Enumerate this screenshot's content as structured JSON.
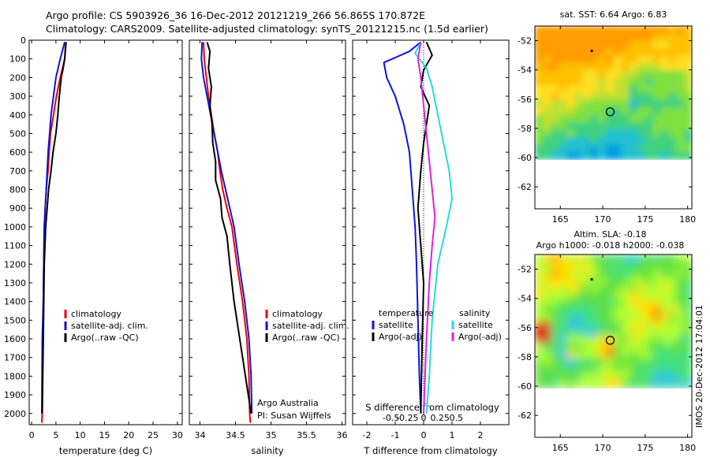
{
  "header": {
    "title_line1": "Argo profile: CS 5903926_36 16-Dec-2012 20121219_266 56.865S 170.872E",
    "title_line2": "Climatology: CARS2009. Satellite-adjusted climatology: synTS_20121215.nc (1.5d earlier)"
  },
  "side_stamp": "IMOS 20-Dec-2012 17:04:01",
  "colors": {
    "climatology": "#ee0000",
    "satellite": "#1111dd",
    "argo": "#000000",
    "sal_satellite": "#22dddd",
    "sal_argo": "#dd22dd"
  },
  "chart_data": [
    {
      "type": "line",
      "id": "temperature",
      "xlabel": "temperature (deg C)",
      "ylabel": "",
      "xlim": [
        -0.5,
        31
      ],
      "ylim": [
        2060,
        0
      ],
      "xticks": [
        0,
        5,
        10,
        15,
        20,
        25,
        30
      ],
      "yticks": [
        0,
        100,
        200,
        300,
        400,
        500,
        600,
        700,
        800,
        900,
        1000,
        1100,
        1200,
        1300,
        1400,
        1500,
        1600,
        1700,
        1800,
        1900,
        2000
      ],
      "legend": {
        "position": "lower-center",
        "entries": [
          "climatology",
          "satellite-adj. clim.",
          "Argo(..raw -QC)"
        ]
      },
      "series": [
        {
          "name": "climatology",
          "color": "#ee0000",
          "x": [
            7.0,
            6.8,
            5.9,
            5.1,
            4.5,
            3.9,
            3.6,
            3.4,
            3.0,
            2.8,
            2.6,
            2.5,
            2.4,
            2.3,
            2.2,
            2.2,
            2.1
          ],
          "y": [
            10,
            100,
            200,
            300,
            400,
            500,
            600,
            700,
            800,
            900,
            1000,
            1200,
            1400,
            1600,
            1800,
            2000,
            2050
          ]
        },
        {
          "name": "satellite-adj. clim.",
          "color": "#1111dd",
          "x": [
            6.8,
            5.9,
            5.0,
            4.5,
            4.0,
            3.7,
            3.4,
            3.2,
            3.0,
            2.8,
            2.6,
            2.5,
            2.4,
            2.2,
            2.15,
            2.1
          ],
          "y": [
            10,
            100,
            200,
            300,
            400,
            500,
            600,
            700,
            800,
            900,
            1000,
            1200,
            1400,
            1600,
            1800,
            2000
          ]
        },
        {
          "name": "Argo(..raw -QC)",
          "color": "#000000",
          "x": [
            7.1,
            6.8,
            6.5,
            6.1,
            5.7,
            5.4,
            5.0,
            4.4,
            4.0,
            3.5,
            3.2,
            2.9,
            2.6,
            2.5,
            2.4,
            2.3,
            2.2
          ],
          "y": [
            10,
            100,
            150,
            200,
            300,
            400,
            500,
            600,
            700,
            800,
            900,
            1000,
            1200,
            1400,
            1600,
            1800,
            2000
          ]
        }
      ]
    },
    {
      "type": "line",
      "id": "salinity",
      "xlabel": "salinity",
      "ylabel": "",
      "xlim": [
        33.85,
        36.05
      ],
      "ylim": [
        2060,
        0
      ],
      "xticks": [
        34,
        34.5,
        35,
        35.5,
        36
      ],
      "xtick_labels": [
        "34",
        "34.5",
        "35",
        "35.5",
        "36"
      ],
      "legend": {
        "position": "lower-center",
        "entries": [
          "climatology",
          "satellite-adj. clim.",
          "Argo(..raw -QC)"
        ]
      },
      "annotation": [
        "Argo Australia",
        "PI: Susan Wijffels"
      ],
      "series": [
        {
          "name": "climatology",
          "color": "#ee0000",
          "x": [
            34.05,
            34.06,
            34.09,
            34.12,
            34.16,
            34.2,
            34.25,
            34.28,
            34.32,
            34.38,
            34.45,
            34.52,
            34.6,
            34.66,
            34.69,
            34.7,
            34.71
          ],
          "y": [
            10,
            100,
            200,
            300,
            400,
            500,
            600,
            700,
            800,
            900,
            1000,
            1200,
            1400,
            1600,
            1800,
            2000,
            2050
          ]
        },
        {
          "name": "satellite-adj. clim.",
          "color": "#1111dd",
          "x": [
            34.03,
            34.02,
            34.05,
            34.1,
            34.15,
            34.2,
            34.25,
            34.3,
            34.36,
            34.42,
            34.48,
            34.55,
            34.63,
            34.69,
            34.72,
            34.73
          ],
          "y": [
            10,
            100,
            200,
            300,
            400,
            500,
            600,
            700,
            800,
            900,
            1000,
            1200,
            1400,
            1600,
            1800,
            2000
          ]
        },
        {
          "name": "Argo(..raw -QC)",
          "color": "#000000",
          "x": [
            34.1,
            34.14,
            34.12,
            34.16,
            34.14,
            34.17,
            34.18,
            34.22,
            34.22,
            34.29,
            34.31,
            34.38,
            34.42,
            34.48,
            34.56,
            34.64,
            34.7,
            34.72
          ],
          "y": [
            10,
            60,
            150,
            250,
            350,
            450,
            550,
            650,
            750,
            850,
            950,
            1050,
            1200,
            1400,
            1600,
            1800,
            1950,
            2000
          ]
        }
      ]
    },
    {
      "type": "line",
      "id": "difference",
      "xlabel": "T difference from climatology",
      "xlabel_top": "S difference from climatology",
      "ylabel": "",
      "xlim": [
        -2.5,
        3.0
      ],
      "ylim": [
        2060,
        0
      ],
      "xticks": [
        -2,
        -1,
        0,
        1,
        2
      ],
      "s_xticks": [
        -0.5,
        -0.25,
        0,
        0.25,
        0.5
      ],
      "s_xtick_labels": [
        "-0.5",
        "-0.25",
        "0",
        "0.25",
        "0.5"
      ],
      "legend": {
        "position": "lower-center",
        "group_titles": [
          "temperature",
          "salinity"
        ],
        "entries": [
          "satellite",
          "Argo(-adj)",
          "satellite",
          "Argo(-adj)"
        ]
      },
      "series": [
        {
          "name": "satellite",
          "group": "temperature",
          "color": "#1111dd",
          "x": [
            -0.1,
            -0.5,
            -1.4,
            -1.3,
            -1.0,
            -0.7,
            -0.5,
            -0.4,
            -0.3,
            -0.25,
            -0.2,
            -0.15,
            -0.1
          ],
          "y": [
            10,
            60,
            120,
            200,
            300,
            450,
            600,
            800,
            1000,
            1200,
            1500,
            1800,
            2000
          ]
        },
        {
          "name": "Argo(-adj)",
          "group": "temperature",
          "color": "#000000",
          "x": [
            0.1,
            0.3,
            0.0,
            -0.1,
            0.2,
            0.1,
            0.0,
            -0.1,
            -0.2,
            -0.1,
            0.0,
            -0.05,
            -0.1
          ],
          "y": [
            10,
            80,
            160,
            250,
            350,
            450,
            550,
            700,
            900,
            1100,
            1300,
            1600,
            2000
          ]
        },
        {
          "name": "satellite",
          "group": "salinity",
          "color": "#22dddd",
          "x": [
            -0.1,
            -0.3,
            0.1,
            0.3,
            0.5,
            0.7,
            0.9,
            1.0,
            0.8,
            0.5,
            0.3,
            0.2,
            0.1
          ],
          "y": [
            10,
            70,
            150,
            250,
            400,
            550,
            700,
            850,
            1000,
            1200,
            1500,
            1800,
            2000
          ]
        },
        {
          "name": "Argo(-adj)",
          "group": "salinity",
          "color": "#dd22dd",
          "x": [
            -0.1,
            -0.2,
            -0.1,
            0.0,
            0.1,
            0.2,
            0.3,
            0.4,
            0.3,
            0.2,
            0.1,
            0.05,
            0.0
          ],
          "y": [
            10,
            100,
            200,
            350,
            500,
            650,
            800,
            950,
            1100,
            1300,
            1600,
            1800,
            2000
          ]
        }
      ]
    },
    {
      "type": "heatmap",
      "id": "sst-map",
      "title": "sat. SST: 6.64  Argo: 6.83",
      "xlim": [
        162,
        180.5
      ],
      "ylim": [
        -63.5,
        -51
      ],
      "xticks": [
        165,
        170,
        175,
        180
      ],
      "yticks": [
        -52,
        -54,
        -56,
        -58,
        -60,
        -62
      ],
      "data_ylim": [
        -60.1,
        -51
      ],
      "marker": {
        "lon": 170.872,
        "lat": -56.865
      },
      "trail": {
        "lon": 168.7,
        "lat": -52.7
      }
    },
    {
      "type": "heatmap",
      "id": "sla-map",
      "title_line1": "Altim. SLA: -0.18",
      "title_line2": "Argo h1000: -0.018  h2000: -0.038",
      "xlim": [
        162,
        180.5
      ],
      "ylim": [
        -63.5,
        -51
      ],
      "xticks": [
        165,
        170,
        175,
        180
      ],
      "yticks": [
        -52,
        -54,
        -56,
        -58,
        -60,
        -62
      ],
      "data_ylim": [
        -60.1,
        -51
      ],
      "marker": {
        "lon": 170.872,
        "lat": -56.865
      },
      "trail": {
        "lon": 168.7,
        "lat": -52.7
      }
    }
  ]
}
